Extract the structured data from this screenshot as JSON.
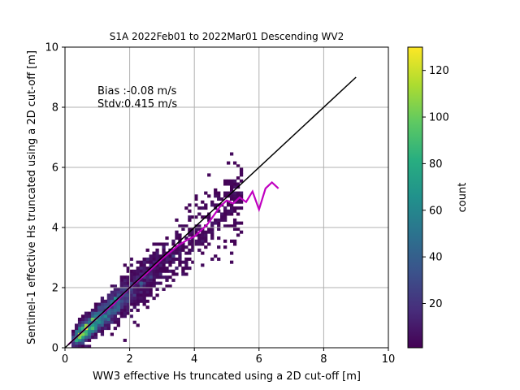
{
  "chart_data": {
    "type": "heatmap",
    "title": "S1A 2022Feb01 to 2022Mar01 Descending WV2",
    "xlabel": "WW3 effective Hs truncated using a 2D cut-off [m]",
    "ylabel": "Sentinel-1 effective Hs truncated using a 2D cut-off [m]",
    "xlim": [
      0,
      10
    ],
    "ylim": [
      0,
      10
    ],
    "xticks": [
      "0",
      "2",
      "4",
      "6",
      "8",
      "10"
    ],
    "yticks": [
      "0",
      "2",
      "4",
      "6",
      "8",
      "10"
    ],
    "grid": true,
    "annotations": [
      "Bias :-0.08 m/s",
      "Stdv:0.415 m/s"
    ],
    "colorbar": {
      "label": "count",
      "range": [
        1,
        130
      ],
      "ticks": [
        "20",
        "40",
        "60",
        "80",
        "100",
        "120"
      ],
      "colormap": "viridis"
    },
    "reference_line": {
      "x": [
        0,
        9
      ],
      "y": [
        0,
        9
      ],
      "color": "#000000"
    },
    "median_curve": {
      "color": "#c000c0",
      "x": [
        0.1,
        0.5,
        1.0,
        1.5,
        2.0,
        2.5,
        3.0,
        3.5,
        3.8,
        4.0,
        4.2,
        4.4,
        4.6,
        4.8,
        5.0,
        5.2,
        5.4,
        5.6,
        5.8,
        6.0,
        6.2,
        6.4,
        6.6
      ],
      "y": [
        0.1,
        0.5,
        1.0,
        1.45,
        2.0,
        2.45,
        2.95,
        3.4,
        3.6,
        3.7,
        3.9,
        4.1,
        4.4,
        4.7,
        4.9,
        4.8,
        5.0,
        4.85,
        5.2,
        4.6,
        5.3,
        5.5,
        5.3
      ]
    },
    "density_model": {
      "core_slope": 0.92,
      "n_points": 5000
    }
  }
}
